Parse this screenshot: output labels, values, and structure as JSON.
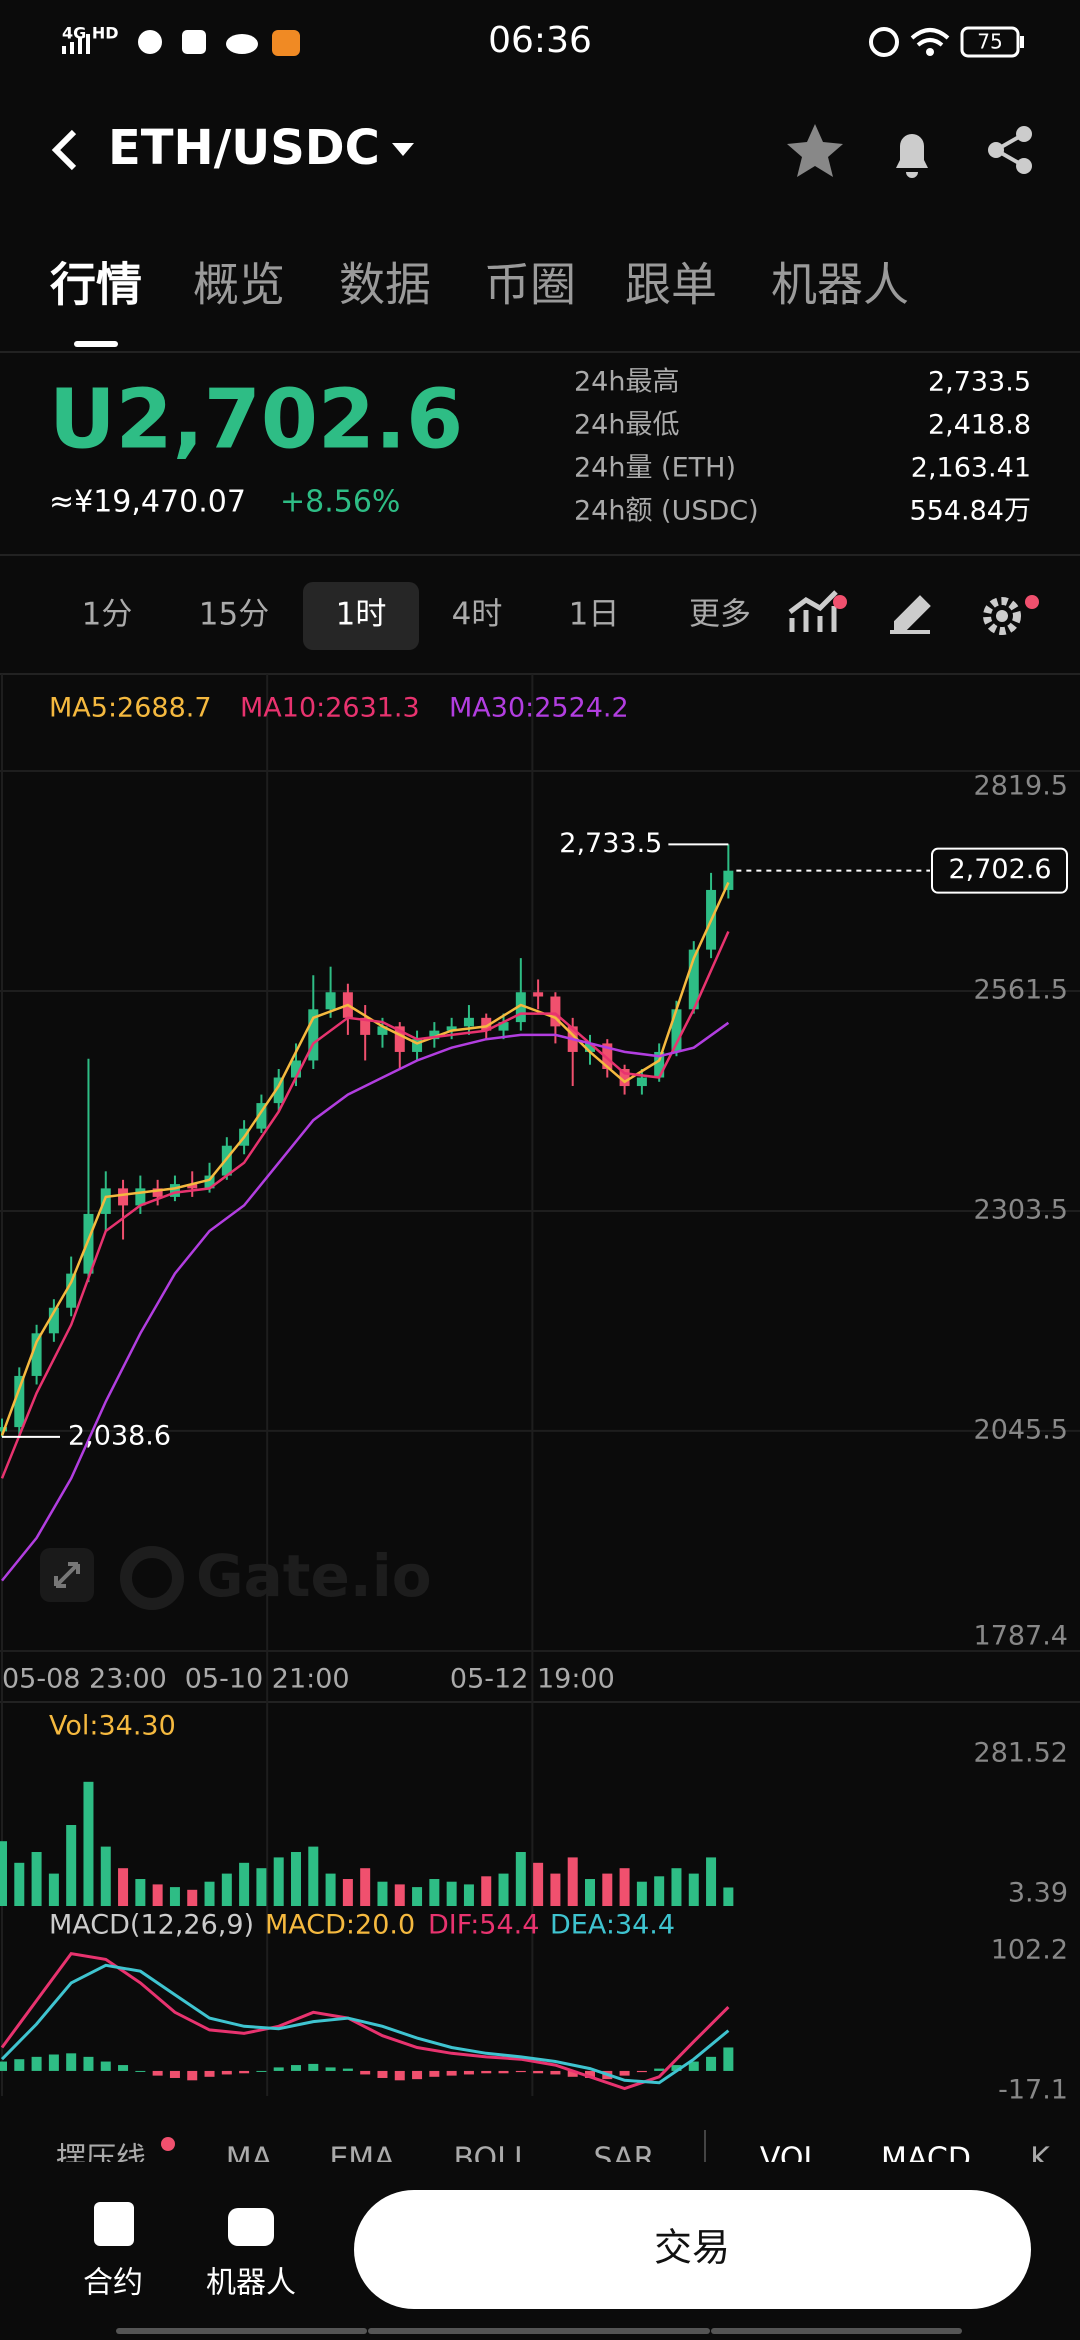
{
  "status_bar": {
    "network": "4G HD",
    "time": "06:36",
    "battery": "75"
  },
  "header": {
    "pair": "ETH/USDC"
  },
  "tabs": {
    "items": [
      "行情",
      "概览",
      "数据",
      "币圈",
      "跟单",
      "机器人"
    ],
    "active": 0
  },
  "ticker": {
    "price": "U2,702.6",
    "fiat": "≈¥19,470.07",
    "change": "+8.56%"
  },
  "stats": [
    [
      "24h最高",
      "2,733.5"
    ],
    [
      "24h最低",
      "2,418.8"
    ],
    [
      "24h量 (ETH)",
      "2,163.41"
    ],
    [
      "24h额 (USDC)",
      "554.84万"
    ]
  ],
  "intervals": {
    "items": [
      "1分",
      "15分",
      "1时",
      "4时",
      "1日",
      "更多"
    ],
    "active": 2
  },
  "chart_data": [
    {
      "type": "candlestick",
      "watermark": "Gate.io",
      "x": [
        0,
        3,
        6,
        9,
        12,
        15,
        18,
        21,
        24,
        27,
        30,
        33,
        36,
        39,
        42,
        45,
        48,
        51,
        54,
        57,
        60,
        63,
        66,
        69,
        72,
        75,
        78,
        81,
        84,
        87,
        90,
        93,
        96,
        99,
        102,
        105,
        108,
        111,
        114,
        117,
        120,
        123,
        126
      ],
      "open": [
        2045,
        2050,
        2110,
        2160,
        2190,
        2230,
        2300,
        2330,
        2310,
        2330,
        2320,
        2335,
        2330,
        2345,
        2380,
        2400,
        2430,
        2460,
        2480,
        2540,
        2560,
        2530,
        2510,
        2520,
        2490,
        2505,
        2515,
        2520,
        2530,
        2515,
        2525,
        2560,
        2555,
        2520,
        2490,
        2500,
        2470,
        2450,
        2460,
        2490,
        2540,
        2610,
        2680
      ],
      "high": [
        2060,
        2120,
        2170,
        2200,
        2250,
        2482,
        2350,
        2340,
        2345,
        2340,
        2345,
        2350,
        2360,
        2390,
        2410,
        2440,
        2470,
        2500,
        2580,
        2590,
        2570,
        2545,
        2530,
        2525,
        2515,
        2525,
        2530,
        2545,
        2535,
        2535,
        2600,
        2575,
        2560,
        2530,
        2510,
        2505,
        2475,
        2470,
        2500,
        2550,
        2620,
        2700,
        2733.5
      ],
      "low": [
        2038.6,
        2040,
        2100,
        2150,
        2180,
        2220,
        2280,
        2270,
        2300,
        2310,
        2315,
        2320,
        2325,
        2340,
        2370,
        2395,
        2420,
        2450,
        2470,
        2530,
        2510,
        2480,
        2495,
        2470,
        2480,
        2495,
        2505,
        2510,
        2505,
        2505,
        2515,
        2540,
        2500,
        2450,
        2475,
        2460,
        2440,
        2440,
        2455,
        2485,
        2535,
        2600,
        2670
      ],
      "close": [
        2050,
        2110,
        2160,
        2190,
        2230,
        2300,
        2330,
        2310,
        2330,
        2320,
        2335,
        2330,
        2345,
        2380,
        2400,
        2430,
        2460,
        2480,
        2540,
        2560,
        2530,
        2510,
        2520,
        2490,
        2505,
        2515,
        2520,
        2530,
        2515,
        2525,
        2560,
        2555,
        2520,
        2490,
        2500,
        2470,
        2450,
        2460,
        2490,
        2540,
        2610,
        2680,
        2702.6
      ],
      "series": [
        {
          "name": "MA5:2688.7",
          "color": "#f5b93f",
          "x": [
            0,
            6,
            12,
            18,
            24,
            30,
            36,
            42,
            48,
            54,
            60,
            66,
            72,
            78,
            84,
            90,
            96,
            102,
            108,
            114,
            120,
            126
          ],
          "values": [
            2040,
            2150,
            2220,
            2320,
            2325,
            2330,
            2340,
            2390,
            2450,
            2530,
            2545,
            2520,
            2500,
            2515,
            2520,
            2545,
            2530,
            2490,
            2455,
            2480,
            2600,
            2688.7
          ]
        },
        {
          "name": "MA10:2631.3",
          "color": "#e8336f",
          "x": [
            0,
            6,
            12,
            18,
            24,
            30,
            36,
            42,
            48,
            54,
            60,
            66,
            72,
            78,
            84,
            90,
            96,
            102,
            108,
            114,
            120,
            126
          ],
          "values": [
            1990,
            2090,
            2170,
            2280,
            2310,
            2325,
            2330,
            2360,
            2420,
            2500,
            2530,
            2525,
            2505,
            2510,
            2515,
            2535,
            2535,
            2500,
            2465,
            2460,
            2540,
            2631.3
          ]
        },
        {
          "name": "MA30:2524.2",
          "color": "#b23ee0",
          "x": [
            0,
            6,
            12,
            18,
            24,
            30,
            36,
            42,
            48,
            54,
            60,
            66,
            72,
            78,
            84,
            90,
            96,
            102,
            108,
            114,
            120,
            126
          ],
          "values": [
            1870,
            1920,
            1990,
            2080,
            2160,
            2230,
            2280,
            2310,
            2360,
            2410,
            2440,
            2460,
            2480,
            2495,
            2505,
            2510,
            2510,
            2500,
            2490,
            2485,
            2495,
            2524.2
          ]
        }
      ],
      "up_color": "#2ebd85",
      "down_color": "#f0506e",
      "xlim": [
        0,
        187
      ],
      "xticks": [
        {
          "value": 0,
          "label": "05-08 23:00"
        },
        {
          "value": 46,
          "label": "05-10 21:00"
        },
        {
          "value": 92,
          "label": "05-12 19:00"
        }
      ],
      "ylim": [
        1787.4,
        2819.5
      ],
      "yticks": [
        2819.5,
        2561.5,
        2303.5,
        2045.5,
        1787.4
      ],
      "high_marker": {
        "value": 2733.5,
        "label": "2,733.5"
      },
      "low_marker": {
        "value": 2038.6,
        "label": "2,038.6"
      },
      "last_marker": {
        "value": 2702.6,
        "label": "2,702.6"
      }
    },
    {
      "type": "bar",
      "title": "Vol:34.30",
      "x": [
        0,
        3,
        6,
        9,
        12,
        15,
        18,
        21,
        24,
        27,
        30,
        33,
        36,
        39,
        42,
        45,
        48,
        51,
        54,
        57,
        60,
        63,
        66,
        69,
        72,
        75,
        78,
        81,
        84,
        87,
        90,
        93,
        96,
        99,
        102,
        105,
        108,
        111,
        114,
        117,
        120,
        123,
        126
      ],
      "values": [
        120,
        80,
        100,
        60,
        150,
        230,
        110,
        70,
        50,
        40,
        35,
        30,
        45,
        60,
        80,
        70,
        90,
        100,
        110,
        60,
        50,
        70,
        45,
        40,
        35,
        50,
        45,
        40,
        55,
        60,
        100,
        80,
        60,
        90,
        50,
        60,
        70,
        45,
        55,
        70,
        60,
        90,
        34.3
      ],
      "ylim": [
        0,
        281.52
      ],
      "yticks": [
        281.52,
        3.39
      ]
    },
    {
      "type": "macd",
      "title": "MACD(12,26,9)",
      "name": "MACD:20.0",
      "color": "#f5b93f",
      "x": [
        0,
        3,
        6,
        9,
        12,
        15,
        18,
        21,
        24,
        27,
        30,
        33,
        36,
        39,
        42,
        45,
        48,
        51,
        54,
        57,
        60,
        63,
        66,
        69,
        72,
        75,
        78,
        81,
        84,
        87,
        90,
        93,
        96,
        99,
        102,
        105,
        108,
        111,
        114,
        117,
        120,
        123,
        126
      ],
      "values": [
        8,
        10,
        12,
        14,
        15,
        12,
        8,
        5,
        0,
        -4,
        -6,
        -8,
        -5,
        -3,
        -2,
        0,
        3,
        5,
        6,
        3,
        2,
        -3,
        -6,
        -8,
        -7,
        -5,
        -4,
        -3,
        -2,
        -2,
        -1,
        -2,
        -3,
        -5,
        -6,
        -7,
        -4,
        -1,
        2,
        5,
        8,
        12,
        20
      ],
      "series": [
        {
          "name": "DIF:54.4",
          "color": "#e8336f",
          "x": [
            0,
            6,
            12,
            18,
            24,
            30,
            36,
            42,
            48,
            54,
            60,
            66,
            72,
            78,
            84,
            90,
            96,
            102,
            108,
            114,
            120,
            126
          ],
          "values": [
            20,
            60,
            100,
            95,
            75,
            50,
            35,
            32,
            38,
            50,
            45,
            30,
            20,
            15,
            12,
            10,
            5,
            -5,
            -15,
            -5,
            25,
            54.4
          ]
        },
        {
          "name": "DEA:34.4",
          "color": "#3fc4d0",
          "x": [
            0,
            6,
            12,
            18,
            24,
            30,
            36,
            42,
            48,
            54,
            60,
            66,
            72,
            78,
            84,
            90,
            96,
            102,
            108,
            114,
            120,
            126
          ],
          "values": [
            10,
            40,
            75,
            90,
            85,
            65,
            45,
            38,
            36,
            42,
            45,
            38,
            28,
            20,
            15,
            12,
            8,
            2,
            -8,
            -10,
            10,
            34.4
          ]
        }
      ],
      "ylim": [
        -17.1,
        102.2
      ],
      "yticks": [
        102.2,
        -17.1
      ]
    }
  ],
  "indicators": {
    "main": [
      "摆压线",
      "MA",
      "EMA",
      "BOLL",
      "SAR"
    ],
    "sub": [
      "VOL",
      "MACD",
      "K"
    ]
  },
  "bottom_bar": {
    "contract": "合约",
    "robot": "机器人",
    "trade": "交易"
  }
}
